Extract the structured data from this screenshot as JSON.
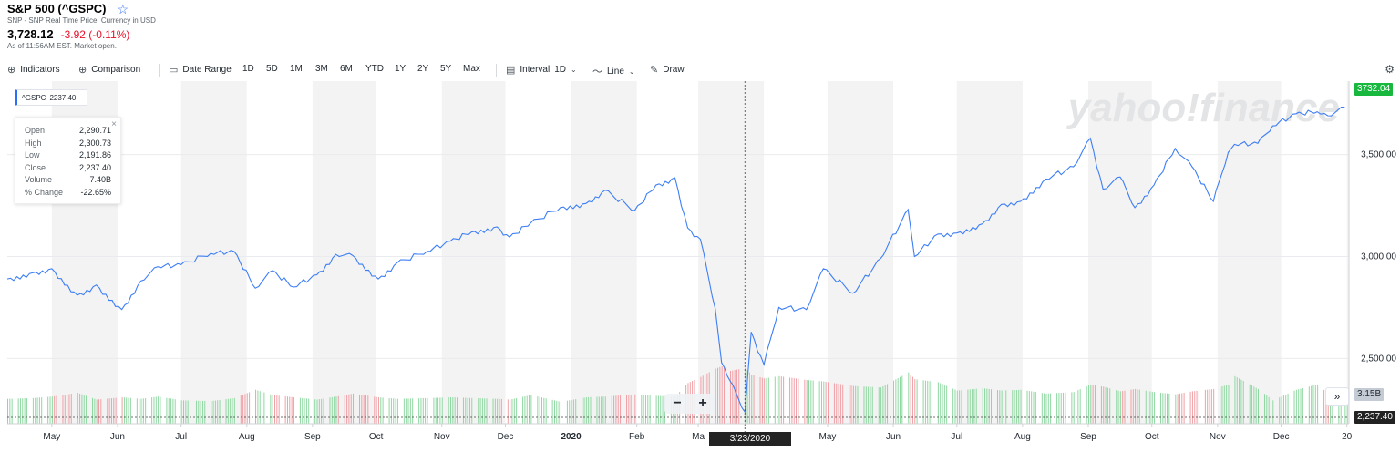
{
  "header": {
    "title": "S&P 500 (^GSPC)",
    "subtitle": "SNP - SNP Real Time Price. Currency in USD",
    "price": "3,728.12",
    "change": "-3.92 (-0.11%)",
    "as_of": "As of 11:56AM EST. Market open."
  },
  "toolbar": {
    "indicators": "Indicators",
    "comparison": "Comparison",
    "date_range": "Date Range",
    "ranges": [
      "1D",
      "5D",
      "1M",
      "3M",
      "6M",
      "YTD",
      "1Y",
      "2Y",
      "5Y",
      "Max"
    ],
    "interval_label": "Interval",
    "interval_value": "1D",
    "line": "Line",
    "draw": "Draw"
  },
  "icons": {
    "star": "star-icon",
    "plus_circle": "plus-circle-icon",
    "calendar": "calendar-icon",
    "candlestick": "interval-icon",
    "line": "line-chart-icon",
    "pencil": "pencil-icon",
    "gear": "gear-icon"
  },
  "tooltip": {
    "symbol": "^GSPC",
    "value": "2237.40",
    "rows": [
      {
        "label": "Open",
        "value": "2,290.71"
      },
      {
        "label": "High",
        "value": "2,300.73"
      },
      {
        "label": "Low",
        "value": "2,191.86"
      },
      {
        "label": "Close",
        "value": "2,237.40"
      },
      {
        "label": "Volume",
        "value": "7.40B"
      },
      {
        "label": "% Change",
        "value": "-22.65%"
      }
    ]
  },
  "zoom": {
    "minus": "−",
    "plus": "+"
  },
  "scroll_label": "»",
  "badges": {
    "last_price": "3732.04",
    "volume": "3.15B",
    "crosshair": "2,237.40",
    "date": "3/23/2020"
  },
  "watermark": "yahoo!finance",
  "colors": {
    "line": "#3d7ef5",
    "up": "#18b83f",
    "down": "#eb0f29",
    "band": "#f3f3f3"
  },
  "chart_data": {
    "type": "line",
    "y_ticks": [
      "2,500.00",
      "3,000.00",
      "3,500.00"
    ],
    "y_tick_values": [
      2500,
      3000,
      3500
    ],
    "ylim": [
      2180,
      3860
    ],
    "x_labels": [
      "May",
      "Jun",
      "Jul",
      "Aug",
      "Sep",
      "Oct",
      "Nov",
      "Dec",
      "2020",
      "Feb",
      "Ma",
      "May",
      "Jun",
      "Jul",
      "Aug",
      "Sep",
      "Oct",
      "Nov",
      "Dec",
      "20"
    ],
    "x_label_dates": [
      "2019-05-01",
      "2019-06-01",
      "2019-07-01",
      "2019-08-01",
      "2019-09-01",
      "2019-10-01",
      "2019-11-01",
      "2019-12-01",
      "2020-01-01",
      "2020-02-01",
      "2020-03-01",
      "2020-05-01",
      "2020-06-01",
      "2020-07-01",
      "2020-08-01",
      "2020-09-01",
      "2020-10-01",
      "2020-11-01",
      "2020-12-01",
      "2021-01-01"
    ],
    "xlim": [
      "2019-04-10",
      "2021-01-02"
    ],
    "series": [
      {
        "dates": [
          "2019-04-10",
          "2019-04-22",
          "2019-05-01",
          "2019-05-13",
          "2019-05-22",
          "2019-06-03",
          "2019-06-12",
          "2019-06-20",
          "2019-07-01",
          "2019-07-15",
          "2019-07-26",
          "2019-08-05",
          "2019-08-13",
          "2019-08-23",
          "2019-09-03",
          "2019-09-12",
          "2019-09-20",
          "2019-10-02",
          "2019-10-11",
          "2019-10-25",
          "2019-11-05",
          "2019-11-15",
          "2019-11-27",
          "2019-12-03",
          "2019-12-13",
          "2019-12-27",
          "2020-01-08",
          "2020-01-17",
          "2020-01-31",
          "2020-02-10",
          "2020-02-19",
          "2020-02-25",
          "2020-03-02",
          "2020-03-09",
          "2020-03-12",
          "2020-03-16",
          "2020-03-23",
          "2020-03-26",
          "2020-04-01",
          "2020-04-08",
          "2020-04-21",
          "2020-04-29",
          "2020-05-13",
          "2020-05-26",
          "2020-06-08",
          "2020-06-11",
          "2020-06-22",
          "2020-07-01",
          "2020-07-13",
          "2020-07-22",
          "2020-07-31",
          "2020-08-12",
          "2020-08-25",
          "2020-09-02",
          "2020-09-08",
          "2020-09-16",
          "2020-09-23",
          "2020-10-02",
          "2020-10-12",
          "2020-10-20",
          "2020-10-30",
          "2020-11-06",
          "2020-11-09",
          "2020-11-20",
          "2020-11-27",
          "2020-12-08",
          "2020-12-18",
          "2020-12-23",
          "2020-12-31"
        ],
        "values": [
          2890,
          2920,
          2940,
          2810,
          2860,
          2740,
          2880,
          2950,
          2960,
          3015,
          3025,
          2845,
          2930,
          2850,
          2910,
          3010,
          3005,
          2890,
          2970,
          3025,
          3075,
          3120,
          3145,
          3095,
          3165,
          3240,
          3260,
          3325,
          3225,
          3350,
          3386,
          3140,
          3085,
          2745,
          2480,
          2390,
          2237,
          2630,
          2470,
          2750,
          2740,
          2940,
          2820,
          2990,
          3230,
          3000,
          3110,
          3115,
          3160,
          3255,
          3270,
          3380,
          3440,
          3580,
          3330,
          3390,
          3240,
          3350,
          3530,
          3440,
          3270,
          3510,
          3550,
          3555,
          3640,
          3700,
          3710,
          3690,
          3732
        ]
      }
    ],
    "volume_values": [
      3.3,
      3.4,
      3.6,
      4.1,
      3.2,
      3.5,
      3.3,
      3.6,
      3.1,
      3.0,
      3.4,
      4.5,
      3.8,
      3.5,
      3.2,
      3.6,
      4.0,
      3.5,
      3.3,
      3.4,
      3.5,
      3.4,
      3.3,
      3.2,
      3.8,
      2.9,
      3.5,
      3.6,
      3.9,
      3.7,
      3.6,
      5.4,
      6.2,
      7.3,
      7.6,
      7.0,
      7.4,
      6.5,
      6.0,
      6.3,
      5.8,
      5.6,
      5.0,
      4.8,
      6.8,
      5.9,
      5.5,
      4.4,
      4.7,
      4.4,
      4.5,
      4.0,
      4.2,
      5.2,
      4.9,
      4.3,
      4.6,
      4.2,
      3.9,
      4.3,
      4.6,
      5.2,
      6.3,
      4.6,
      3.1,
      4.5,
      5.2,
      4.0,
      3.2
    ],
    "volume_max": 8.5,
    "crosshair_date": "2020-03-23",
    "crosshair_value": 2237.4
  }
}
